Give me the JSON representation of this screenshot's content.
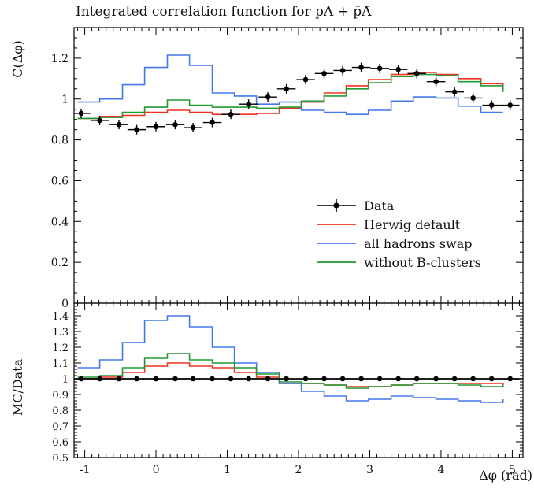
{
  "chart_data": [
    {
      "type": "line",
      "title": "Integrated correlation function for pΛ + p̄Λ̄",
      "xlabel": "",
      "ylabel": "C(Δφ)",
      "xlim": [
        -1.15,
        5.15
      ],
      "ylim": [
        0,
        1.35
      ],
      "yticks": [
        "0",
        "0.2",
        "0.4",
        "0.6",
        "0.8",
        "1",
        "1.2"
      ],
      "legend_position": "center-right",
      "bin_edges": [
        -1.1,
        -0.79,
        -0.47,
        -0.16,
        0.16,
        0.47,
        0.79,
        1.1,
        1.41,
        1.73,
        2.04,
        2.36,
        2.67,
        2.98,
        3.3,
        3.61,
        3.93,
        4.24,
        4.56,
        4.87
      ],
      "data": {
        "name": "Data",
        "color": "#000000",
        "x": [
          -1.05,
          -0.79,
          -0.52,
          -0.27,
          0.0,
          0.27,
          0.52,
          0.79,
          1.05,
          1.3,
          1.57,
          1.83,
          2.1,
          2.36,
          2.62,
          2.88,
          3.14,
          3.4,
          3.66,
          3.93,
          4.19,
          4.45,
          4.71,
          4.97
        ],
        "y": [
          0.93,
          0.895,
          0.875,
          0.85,
          0.865,
          0.875,
          0.86,
          0.885,
          0.925,
          0.975,
          1.01,
          1.05,
          1.095,
          1.125,
          1.14,
          1.155,
          1.15,
          1.145,
          1.125,
          1.085,
          1.035,
          1.005,
          0.97,
          0.97
        ]
      },
      "series": [
        {
          "name": "Herwig default",
          "color": "#ee3322",
          "values": [
            0.905,
            0.915,
            0.92,
            0.935,
            0.945,
            0.935,
            0.925,
            0.925,
            0.93,
            0.955,
            0.985,
            1.03,
            1.065,
            1.095,
            1.12,
            1.13,
            1.12,
            1.1,
            1.075,
            1.04,
            1.005
          ]
        },
        {
          "name": "all hadrons swap",
          "color": "#4477ee",
          "values": [
            0.985,
            1.0,
            1.07,
            1.155,
            1.215,
            1.165,
            1.03,
            1.015,
            0.975,
            0.985,
            0.945,
            0.935,
            0.925,
            0.945,
            0.99,
            1.01,
            1.005,
            0.965,
            0.935,
            0.935,
            0.935
          ]
        },
        {
          "name": "without B-clusters",
          "color": "#229933",
          "values": [
            0.905,
            0.91,
            0.935,
            0.96,
            0.995,
            0.97,
            0.96,
            0.96,
            0.955,
            0.96,
            0.99,
            1.015,
            1.05,
            1.08,
            1.11,
            1.12,
            1.115,
            1.085,
            1.065,
            1.035,
            1.005
          ]
        }
      ]
    },
    {
      "type": "line",
      "title": "",
      "xlabel": "Δφ (rad)",
      "ylabel": "MC/Data",
      "xlim": [
        -1.15,
        5.15
      ],
      "ylim": [
        0.5,
        1.48
      ],
      "xticks": [
        "-1",
        "0",
        "1",
        "2",
        "3",
        "4",
        "5"
      ],
      "yticks": [
        "0.5",
        "0.6",
        "0.7",
        "0.8",
        "0.9",
        "1",
        "1.1",
        "1.2",
        "1.3",
        "1.4"
      ],
      "data": {
        "name": "Data",
        "x": [
          -1.05,
          -0.79,
          -0.52,
          -0.27,
          0.0,
          0.27,
          0.52,
          0.79,
          1.05,
          1.3,
          1.57,
          1.83,
          2.1,
          2.36,
          2.62,
          2.88,
          3.14,
          3.4,
          3.66,
          3.93,
          4.19,
          4.45,
          4.71,
          4.97
        ],
        "y": [
          1,
          1,
          1,
          1,
          1,
          1,
          1,
          1,
          1,
          1,
          1,
          1,
          1,
          1,
          1,
          1,
          1,
          1,
          1,
          1,
          1,
          1,
          1,
          1
        ]
      },
      "series": [
        {
          "name": "Herwig default",
          "color": "#ee3322",
          "values": [
            1.0,
            1.01,
            1.04,
            1.08,
            1.1,
            1.08,
            1.07,
            1.04,
            1.01,
            0.97,
            0.97,
            0.96,
            0.95,
            0.95,
            0.96,
            0.97,
            0.97,
            0.97,
            0.97,
            0.96,
            0.96
          ]
        },
        {
          "name": "all hadrons swap",
          "color": "#4477ee",
          "values": [
            1.07,
            1.12,
            1.23,
            1.37,
            1.4,
            1.33,
            1.2,
            1.1,
            1.04,
            0.97,
            0.92,
            0.89,
            0.86,
            0.87,
            0.89,
            0.88,
            0.87,
            0.86,
            0.85,
            0.87,
            0.92
          ]
        },
        {
          "name": "without B-clusters",
          "color": "#229933",
          "values": [
            1.01,
            1.02,
            1.07,
            1.13,
            1.16,
            1.12,
            1.1,
            1.07,
            1.03,
            0.98,
            0.97,
            0.96,
            0.94,
            0.95,
            0.96,
            0.97,
            0.97,
            0.96,
            0.95,
            0.96,
            0.96
          ]
        }
      ]
    }
  ]
}
